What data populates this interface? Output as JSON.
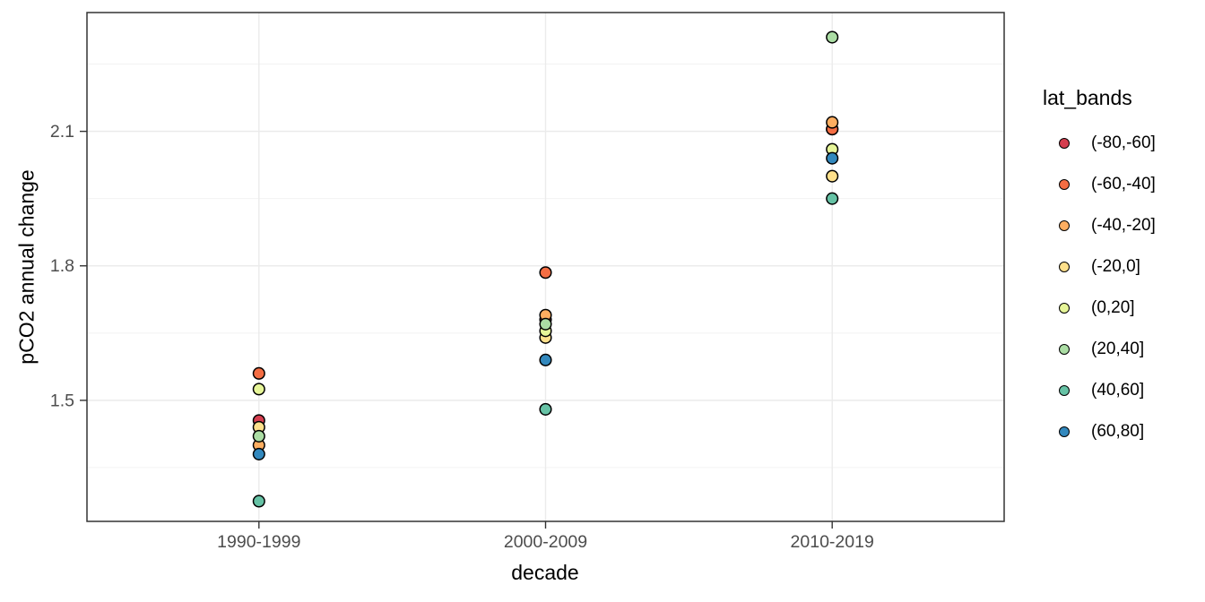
{
  "chart_data": {
    "type": "scatter",
    "title": "",
    "xlabel": "decade",
    "ylabel": "pCO2 annual change",
    "categories": [
      "1990-1999",
      "2000-2009",
      "2010-2019"
    ],
    "y_ticks": [
      1.5,
      1.8,
      2.1
    ],
    "y_tick_labels": [
      "1.5",
      "1.8",
      "2.1"
    ],
    "y_minor_ticks": [
      1.35,
      1.65,
      1.95,
      2.25
    ],
    "ylim": [
      1.23,
      2.365
    ],
    "grid": true,
    "legend_title": "lat_bands",
    "legend_position": "right",
    "series": [
      {
        "name": "(-80,-60]",
        "color": "#d53e4f",
        "values": [
          1.455,
          1.68,
          2.105
        ]
      },
      {
        "name": "(-60,-40]",
        "color": "#f46d43",
        "values": [
          1.56,
          1.785,
          2.105
        ]
      },
      {
        "name": "(-40,-20]",
        "color": "#fdae61",
        "values": [
          1.4,
          1.69,
          2.12
        ]
      },
      {
        "name": "(-20,0]",
        "color": "#fee08b",
        "values": [
          1.44,
          1.64,
          2.0
        ]
      },
      {
        "name": "(0,20]",
        "color": "#e6f598",
        "values": [
          1.525,
          1.655,
          2.06
        ]
      },
      {
        "name": "(20,40]",
        "color": "#abdda4",
        "values": [
          1.42,
          1.67,
          2.31
        ]
      },
      {
        "name": "(40,60]",
        "color": "#66c2a5",
        "values": [
          1.275,
          1.48,
          1.95
        ]
      },
      {
        "name": "(60,80]",
        "color": "#3288bd",
        "values": [
          1.38,
          1.59,
          2.04
        ]
      }
    ],
    "style_colors": {
      "panel_background": "#ffffff",
      "panel_border": "#333333",
      "grid_major": "#ebebeb",
      "grid_minor": "#f0f0f0",
      "tick_mark": "#333333",
      "tick_label": "#4d4d4d",
      "point_outline": "#000000"
    }
  }
}
